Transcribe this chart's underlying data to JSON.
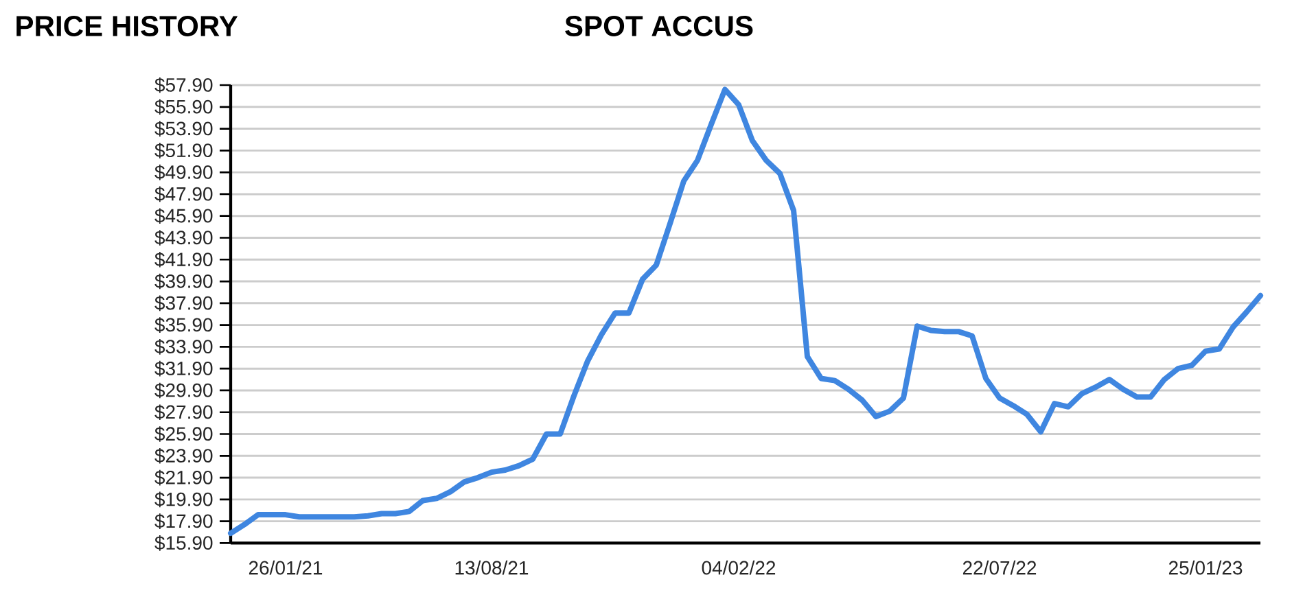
{
  "chart_data": {
    "type": "line",
    "title": "SPOT ACCUS",
    "subtitle": "PRICE HISTORY",
    "categories": [
      null,
      null,
      null,
      null,
      "26/01/21",
      null,
      null,
      null,
      null,
      null,
      null,
      null,
      null,
      null,
      null,
      null,
      null,
      null,
      null,
      "13/08/21",
      null,
      null,
      null,
      null,
      null,
      null,
      null,
      null,
      null,
      null,
      null,
      null,
      null,
      null,
      null,
      null,
      null,
      "04/02/22",
      null,
      null,
      null,
      null,
      null,
      null,
      null,
      null,
      null,
      null,
      null,
      null,
      null,
      null,
      null,
      null,
      null,
      null,
      "22/07/22",
      null,
      null,
      null,
      null,
      null,
      null,
      null,
      null,
      null,
      null,
      null,
      null,
      null,
      null,
      "25/01/23",
      null,
      null,
      null,
      null
    ],
    "values": [
      16.8,
      17.6,
      18.5,
      18.5,
      18.5,
      18.3,
      18.3,
      18.3,
      18.3,
      18.3,
      18.4,
      18.6,
      18.6,
      18.8,
      19.8,
      20.0,
      20.6,
      21.5,
      21.9,
      22.4,
      22.6,
      23.0,
      23.6,
      25.9,
      25.9,
      29.4,
      32.6,
      35.0,
      37.0,
      37.0,
      40.1,
      41.4,
      45.2,
      49.1,
      51.0,
      54.3,
      57.5,
      56.1,
      52.8,
      51.0,
      49.8,
      46.4,
      33.0,
      31.0,
      30.8,
      30.0,
      29.0,
      27.5,
      28.0,
      29.2,
      35.8,
      35.4,
      35.3,
      35.3,
      34.9,
      31.0,
      29.2,
      28.5,
      27.7,
      26.1,
      28.7,
      28.4,
      29.6,
      30.2,
      30.9,
      30.0,
      29.3,
      29.3,
      30.9,
      31.9,
      32.2,
      33.5,
      33.7,
      35.7,
      37.1,
      38.6
    ],
    "color": "#3f86e0",
    "line_style": "solid",
    "ylim": [
      15.9,
      57.9
    ],
    "yticks": [
      {
        "value": 15.9,
        "label": "$15.90"
      },
      {
        "value": 17.9,
        "label": "$17.90"
      },
      {
        "value": 19.9,
        "label": "$19.90"
      },
      {
        "value": 21.9,
        "label": "$21.90"
      },
      {
        "value": 23.9,
        "label": "$23.90"
      },
      {
        "value": 25.9,
        "label": "$25.90"
      },
      {
        "value": 27.9,
        "label": "$27.90"
      },
      {
        "value": 29.9,
        "label": "$29.90"
      },
      {
        "value": 31.9,
        "label": "$31.90"
      },
      {
        "value": 33.9,
        "label": "$33.90"
      },
      {
        "value": 35.9,
        "label": "$35.90"
      },
      {
        "value": 37.9,
        "label": "$37.90"
      },
      {
        "value": 39.9,
        "label": "$39.90"
      },
      {
        "value": 41.9,
        "label": "$41.90"
      },
      {
        "value": 43.9,
        "label": "$43.90"
      },
      {
        "value": 45.9,
        "label": "$45.90"
      },
      {
        "value": 47.9,
        "label": "$47.90"
      },
      {
        "value": 49.9,
        "label": "$49.90"
      },
      {
        "value": 51.9,
        "label": "$51.90"
      },
      {
        "value": 53.9,
        "label": "$53.90"
      },
      {
        "value": 55.9,
        "label": "$55.90"
      },
      {
        "value": 57.9,
        "label": "$57.90"
      }
    ],
    "grid": "y"
  }
}
